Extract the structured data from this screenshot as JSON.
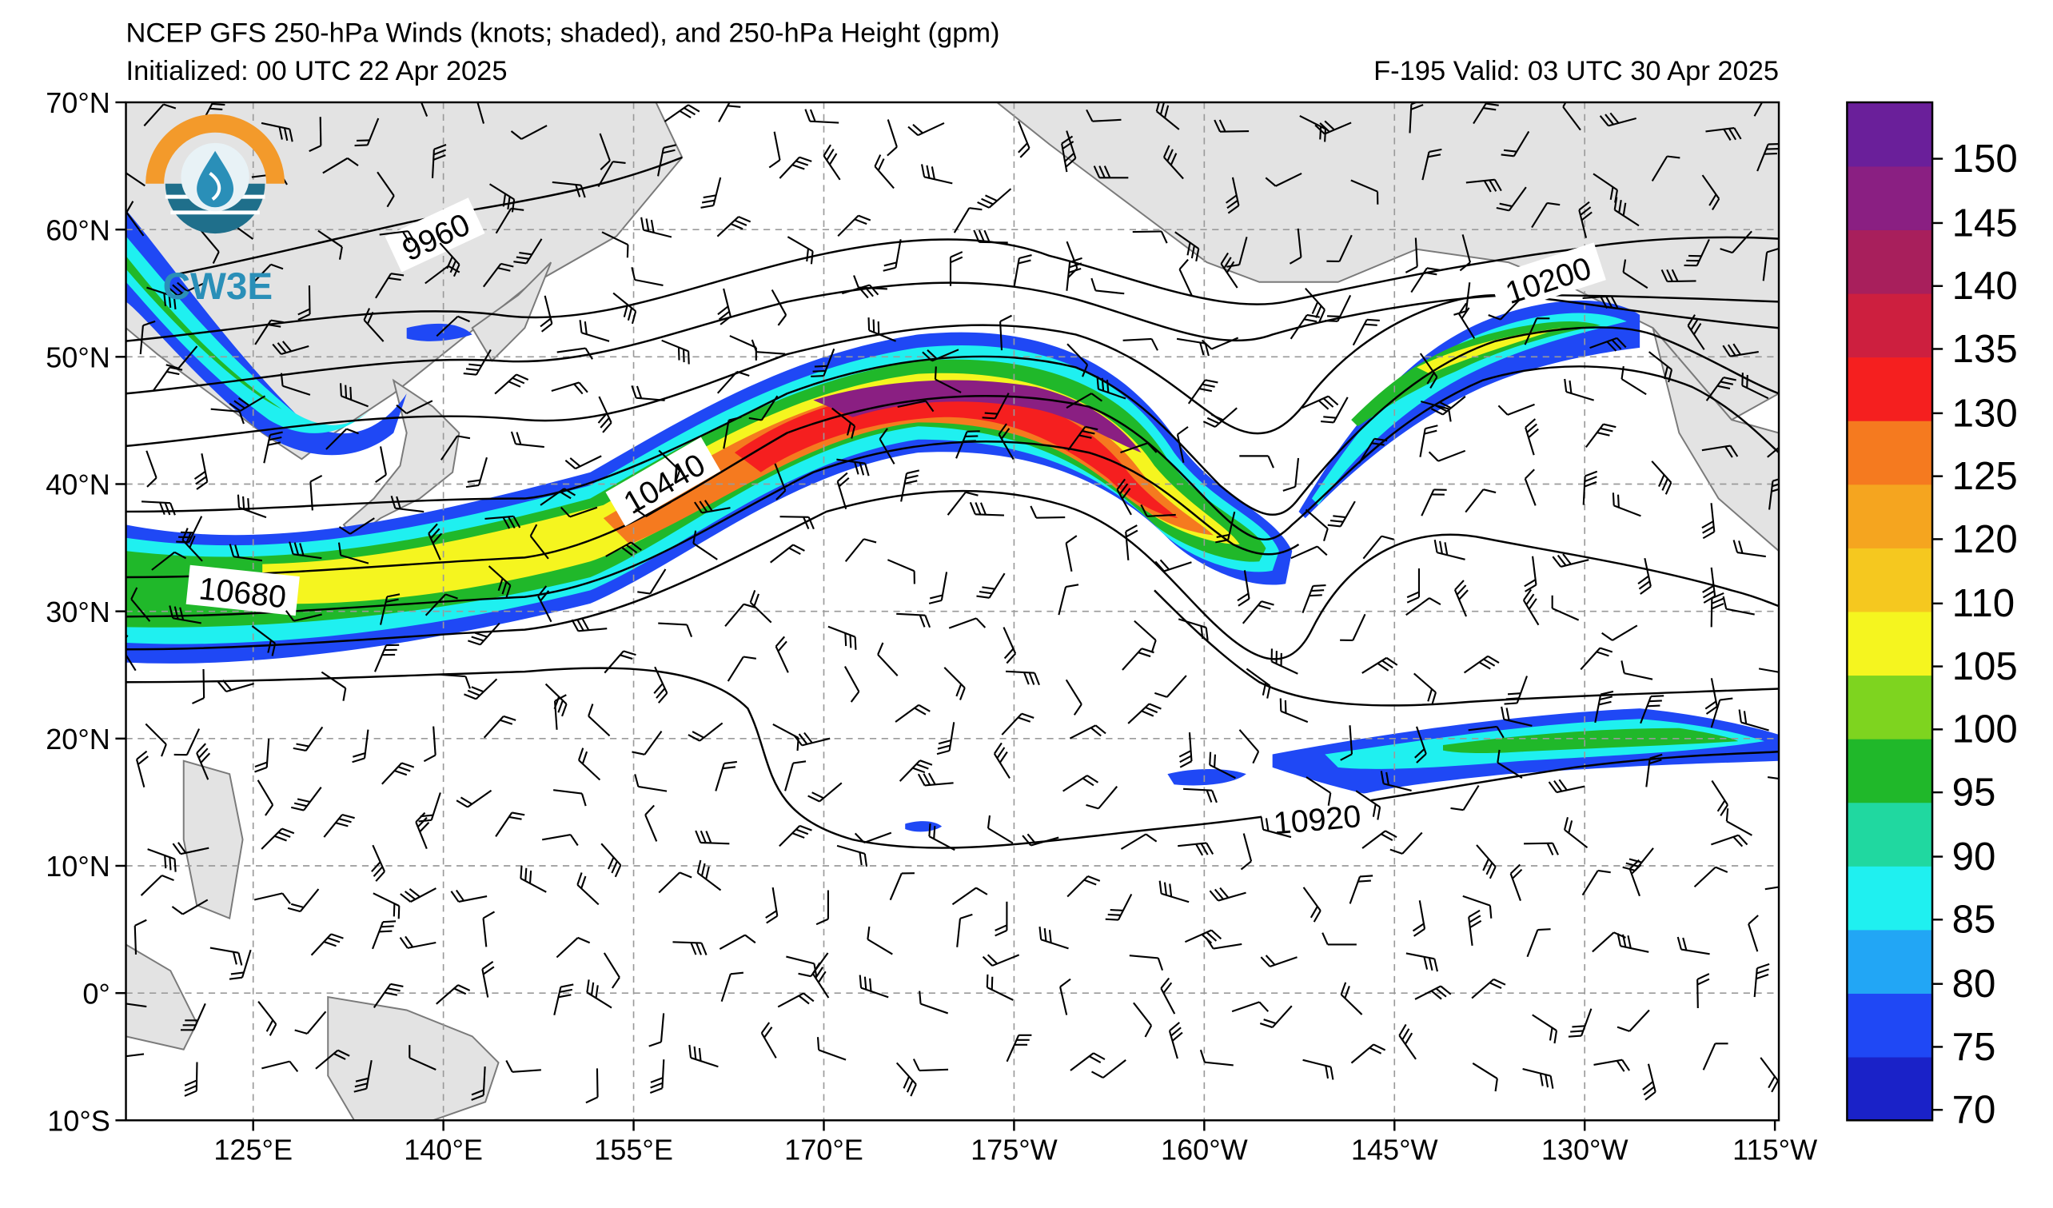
{
  "header": {
    "title": "NCEP GFS 250-hPa Winds (knots; shaded), and 250-hPa Height (gpm)",
    "initialized": "Initialized: 00 UTC 22 Apr 2025",
    "valid": "F-195  Valid: 03 UTC 30 Apr 2025"
  },
  "logo": {
    "text": "CW3E"
  },
  "map": {
    "lat_labels": [
      "70°N",
      "60°N",
      "50°N",
      "40°N",
      "30°N",
      "20°N",
      "10°N",
      "0°",
      "10°S"
    ],
    "lon_labels": [
      "125°E",
      "140°E",
      "155°E",
      "170°E",
      "175°W",
      "160°W",
      "145°W",
      "130°W",
      "115°W"
    ],
    "contour_labels": [
      "9960",
      "10200",
      "10440",
      "10680",
      "10920"
    ]
  },
  "colorbar": {
    "ticks": [
      "150",
      "145",
      "140",
      "135",
      "130",
      "125",
      "120",
      "110",
      "105",
      "100",
      "95",
      "90",
      "85",
      "80",
      "75",
      "70"
    ],
    "colors": [
      "#1a22c8",
      "#1f48f5",
      "#22a6f5",
      "#1ff0f0",
      "#20d8a0",
      "#20b82a",
      "#7ed41f",
      "#f5f51f",
      "#f5c81f",
      "#f5a51f",
      "#f57a1f",
      "#f51f1f",
      "#cd1f3f",
      "#a81f5c",
      "#8a1f82",
      "#6a1f9a"
    ]
  }
}
